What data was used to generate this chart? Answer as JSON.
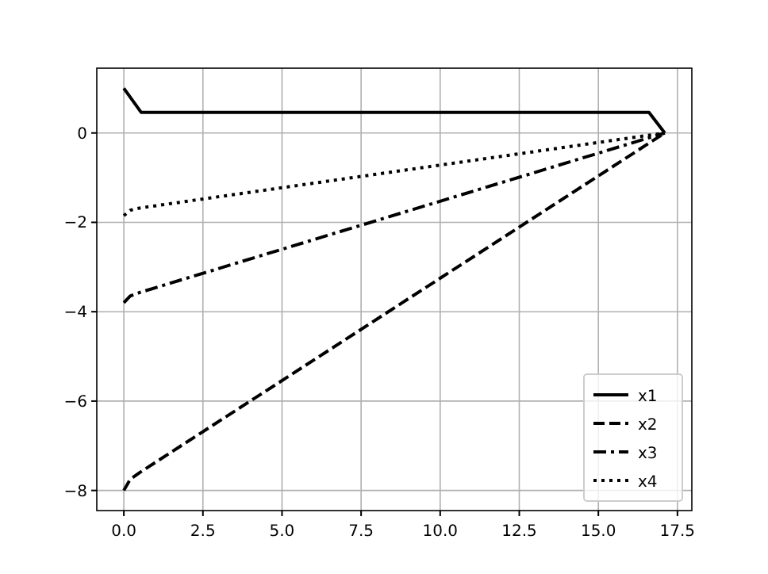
{
  "chart_data": {
    "type": "line",
    "xlim": [
      -0.855,
      17.955
    ],
    "ylim": [
      -8.45,
      1.45
    ],
    "xticks": [
      {
        "value": 0,
        "label": "0.0"
      },
      {
        "value": 2.5,
        "label": "2.5"
      },
      {
        "value": 5,
        "label": "5.0"
      },
      {
        "value": 7.5,
        "label": "7.5"
      },
      {
        "value": 10,
        "label": "10.0"
      },
      {
        "value": 12.5,
        "label": "12.5"
      },
      {
        "value": 15,
        "label": "15.0"
      },
      {
        "value": 17.5,
        "label": "17.5"
      }
    ],
    "yticks": [
      {
        "value": -8,
        "label": "−8"
      },
      {
        "value": -6,
        "label": "−6"
      },
      {
        "value": -4,
        "label": "−4"
      },
      {
        "value": -2,
        "label": "−2"
      },
      {
        "value": 0,
        "label": "0"
      }
    ],
    "grid": true,
    "legend": "bottom right",
    "series": [
      {
        "name": "x1",
        "color": "#000000",
        "line_style": "solid",
        "x": [
          0,
          0.55,
          16.6,
          17.1
        ],
        "values": [
          1,
          0.46,
          0.46,
          0
        ]
      },
      {
        "name": "x2",
        "color": "#000000",
        "line_style": "dashed",
        "x": [
          0,
          0.2,
          0.5,
          17.1
        ],
        "values": [
          -8,
          -7.75,
          -7.6,
          0
        ]
      },
      {
        "name": "x3",
        "color": "#000000",
        "line_style": "dashdot",
        "x": [
          0,
          0.2,
          0.5,
          17.1
        ],
        "values": [
          -3.8,
          -3.65,
          -3.57,
          0
        ]
      },
      {
        "name": "x4",
        "color": "#000000",
        "line_style": "dotted",
        "x": [
          0,
          0.2,
          0.5,
          17.1
        ],
        "values": [
          -1.85,
          -1.73,
          -1.68,
          0
        ]
      }
    ]
  }
}
